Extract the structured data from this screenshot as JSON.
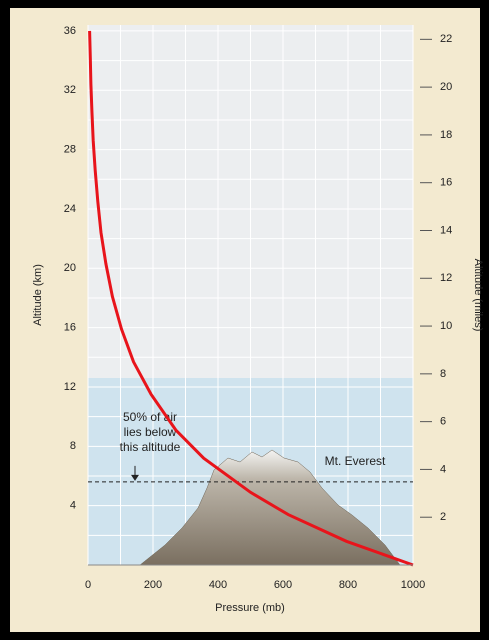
{
  "chart_data": {
    "type": "line",
    "x_label": "Pressure (mb)",
    "y_label": "Altitude (km)",
    "y2_label": "Altitude (miles)",
    "x": [
      1000,
      795,
      616,
      500,
      356,
      270,
      194,
      140,
      103,
      75,
      55,
      40,
      30,
      22,
      16,
      12,
      9,
      7,
      5
    ],
    "series": [
      {
        "color": "#e8141b",
        "values": [
          0,
          1.6,
          3.4,
          4.9,
          7.2,
          9.1,
          11.5,
          13.7,
          15.9,
          18.1,
          20.3,
          22.4,
          24.5,
          26.6,
          28.6,
          30.6,
          32.4,
          34.2,
          36
        ]
      }
    ],
    "xlim": [
      0,
      1000
    ],
    "xticks": [
      0,
      200,
      400,
      600,
      800,
      1000
    ],
    "minor_xticks": [
      100,
      300,
      500,
      700,
      900
    ],
    "ylim": [
      0,
      36.4
    ],
    "yticks": [
      4,
      8,
      12,
      16,
      20,
      24,
      28,
      32,
      36
    ],
    "minor_yticks": [
      2,
      6,
      10,
      14,
      18,
      22,
      26,
      30,
      34
    ],
    "y2lim": [
      0,
      22.6
    ],
    "y2ticks": [
      2,
      4,
      6,
      8,
      10,
      12,
      14,
      16,
      18,
      20,
      22
    ],
    "grid": true,
    "reference_line": {
      "y": 5.6,
      "label_lines": [
        "50% of air",
        "lies below",
        "this altitude"
      ]
    },
    "annotation": "Mt. Everest"
  }
}
